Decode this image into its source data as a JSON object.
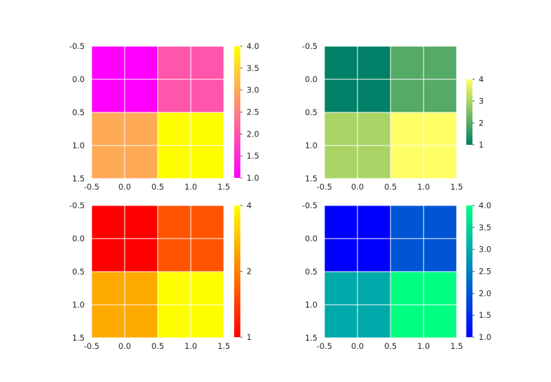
{
  "chart_data": [
    {
      "type": "heatmap",
      "colormap": "spring",
      "matrix": [
        [
          1,
          2
        ],
        [
          3,
          4
        ]
      ],
      "x_ticks": [
        "-0.5",
        "0.0",
        "0.5",
        "1.0",
        "1.5"
      ],
      "y_ticks": [
        "-0.5",
        "0.0",
        "0.5",
        "1.0",
        "1.5"
      ],
      "colorbar_ticks": [
        "1.0",
        "1.5",
        "2.0",
        "2.5",
        "3.0",
        "3.5",
        "4.0"
      ],
      "colorbar_range": [
        1,
        4
      ],
      "cell_colors": [
        "#ff00ff",
        "#ff55aa",
        "#ffaa55",
        "#ffff00"
      ]
    },
    {
      "type": "heatmap",
      "colormap": "summer",
      "matrix": [
        [
          1,
          2
        ],
        [
          3,
          4
        ]
      ],
      "x_ticks": [
        "-0.5",
        "0.0",
        "0.5",
        "1.0",
        "1.5"
      ],
      "y_ticks": [
        "-0.5",
        "0.0",
        "0.5",
        "1.0",
        "1.5"
      ],
      "colorbar_ticks": [
        "1",
        "2",
        "3",
        "4"
      ],
      "colorbar_range": [
        1,
        4
      ],
      "cell_colors": [
        "#008066",
        "#55aa66",
        "#aad566",
        "#ffff66"
      ]
    },
    {
      "type": "heatmap",
      "colormap": "autumn",
      "matrix": [
        [
          1,
          2
        ],
        [
          3,
          4
        ]
      ],
      "x_ticks": [
        "-0.5",
        "0.0",
        "0.5",
        "1.0",
        "1.5"
      ],
      "y_ticks": [
        "-0.5",
        "0.0",
        "0.5",
        "1.0",
        "1.5"
      ],
      "colorbar_ticks": [
        "1",
        "2",
        "4"
      ],
      "colorbar_scale": "log",
      "colorbar_range": [
        1,
        4
      ],
      "cell_colors": [
        "#ff0000",
        "#ff5500",
        "#ffaa00",
        "#ffff00"
      ]
    },
    {
      "type": "heatmap",
      "colormap": "winter",
      "matrix": [
        [
          1,
          2
        ],
        [
          3,
          4
        ]
      ],
      "x_ticks": [
        "-0.5",
        "0.0",
        "0.5",
        "1.0",
        "1.5"
      ],
      "y_ticks": [
        "-0.5",
        "0.0",
        "0.5",
        "1.0",
        "1.5"
      ],
      "colorbar_ticks": [
        "1.0",
        "1.5",
        "2.0",
        "2.5",
        "3.0",
        "3.5",
        "4.0"
      ],
      "colorbar_range": [
        1,
        4
      ],
      "cell_colors": [
        "#0000ff",
        "#0055d5",
        "#00aaaa",
        "#00ff80"
      ]
    }
  ],
  "style": {
    "grid_color": "#ffffff",
    "text_color": "#262626"
  }
}
